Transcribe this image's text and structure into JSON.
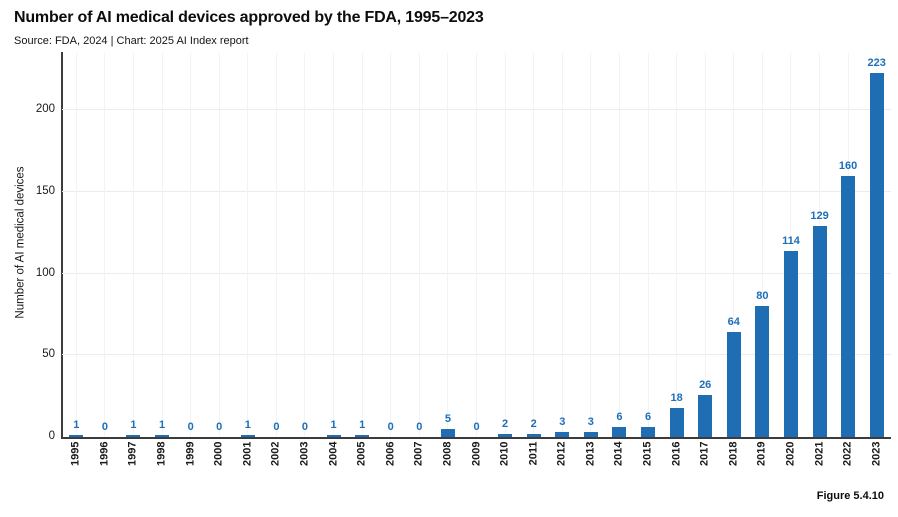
{
  "header": {
    "title": "Number of AI medical devices approved by the FDA, 1995–2023",
    "source_line": "Source: FDA, 2024 | Chart: 2025 AI Index report"
  },
  "footer": {
    "figure_label": "Figure 5.4.10"
  },
  "chart_data": {
    "type": "bar",
    "title": "Number of AI medical devices approved by the FDA, 1995–2023",
    "source": "Source: FDA, 2024 | Chart: 2025 AI Index report",
    "categories": [
      "1995",
      "1996",
      "1997",
      "1998",
      "1999",
      "2000",
      "2001",
      "2002",
      "2003",
      "2004",
      "2005",
      "2006",
      "2007",
      "2008",
      "2009",
      "2010",
      "2011",
      "2012",
      "2013",
      "2014",
      "2015",
      "2016",
      "2017",
      "2018",
      "2019",
      "2020",
      "2021",
      "2022",
      "2023"
    ],
    "values": [
      1,
      0,
      1,
      1,
      0,
      0,
      1,
      0,
      0,
      1,
      1,
      0,
      0,
      5,
      0,
      2,
      2,
      3,
      3,
      6,
      6,
      18,
      26,
      64,
      80,
      114,
      129,
      160,
      223
    ],
    "xlabel": "",
    "ylabel": "Number of AI medical devices",
    "yticks": [
      0,
      50,
      100,
      150,
      200
    ],
    "ylim": [
      0,
      235
    ],
    "grid": true,
    "legend_position": "none",
    "bar_color": "#1f6eb4",
    "value_label_color": "#1e6fb8",
    "figure_label": "Figure 5.4.10"
  }
}
